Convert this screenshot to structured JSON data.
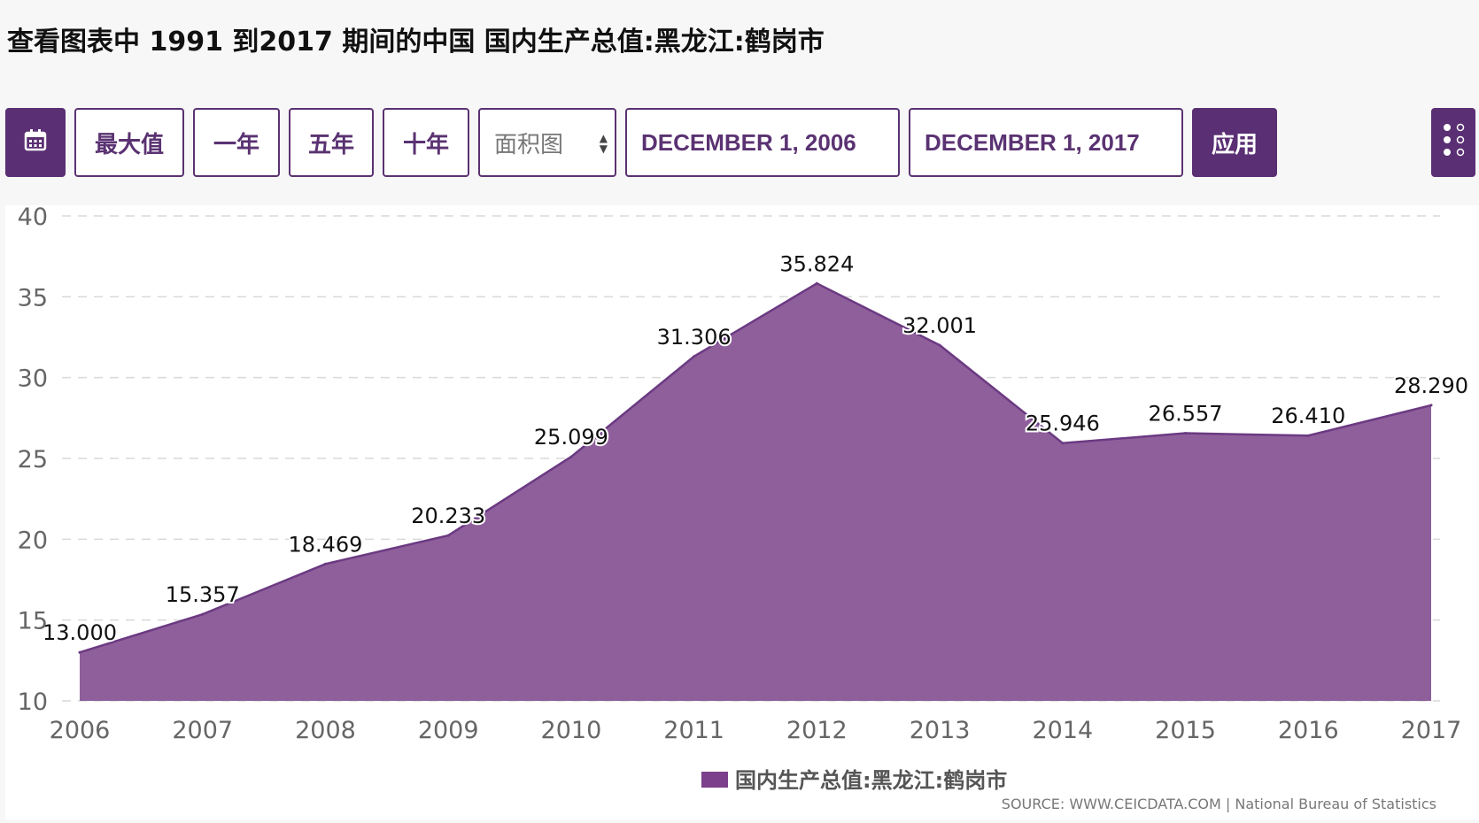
{
  "page": {
    "title": "查看图表中 1991 到2017 期间的中国 国内生产总值:黑龙江:鹤岗市"
  },
  "toolbar": {
    "calendar_icon": "calendar-icon",
    "max_label": "最大值",
    "one_year_label": "一年",
    "five_year_label": "五年",
    "ten_year_label": "十年",
    "chart_type_value": "面积图",
    "start_date": "DECEMBER 1, 2006",
    "end_date": "DECEMBER 1, 2017",
    "apply_label": "应用",
    "more_icon": "more-options-icon"
  },
  "colors": {
    "brand": "#5a2f73",
    "area_fill": "#8f5f9b",
    "area_line": "#6b3a82"
  },
  "chart_data": {
    "type": "area",
    "x": [
      "2006",
      "2007",
      "2008",
      "2009",
      "2010",
      "2011",
      "2012",
      "2013",
      "2014",
      "2015",
      "2016",
      "2017"
    ],
    "series": [
      {
        "name": "国内生产总值:黑龙江:鹤岗市",
        "values": [
          13.0,
          15.357,
          18.469,
          20.233,
          25.099,
          31.306,
          35.824,
          32.001,
          25.946,
          26.557,
          26.41,
          28.29
        ],
        "labels": [
          "13.000",
          "15.357",
          "18.469",
          "20.233",
          "25.099",
          "31.306",
          "35.824",
          "32.001",
          "25.946",
          "26.557",
          "26.410",
          "28.290"
        ]
      }
    ],
    "yticks": [
      "10",
      "15",
      "20",
      "25",
      "30",
      "35",
      "40"
    ],
    "ylim": [
      10,
      40
    ],
    "grid": true,
    "legend_position": "bottom-center",
    "source": "SOURCE: WWW.CEICDATA.COM | National Bureau of Statistics"
  }
}
